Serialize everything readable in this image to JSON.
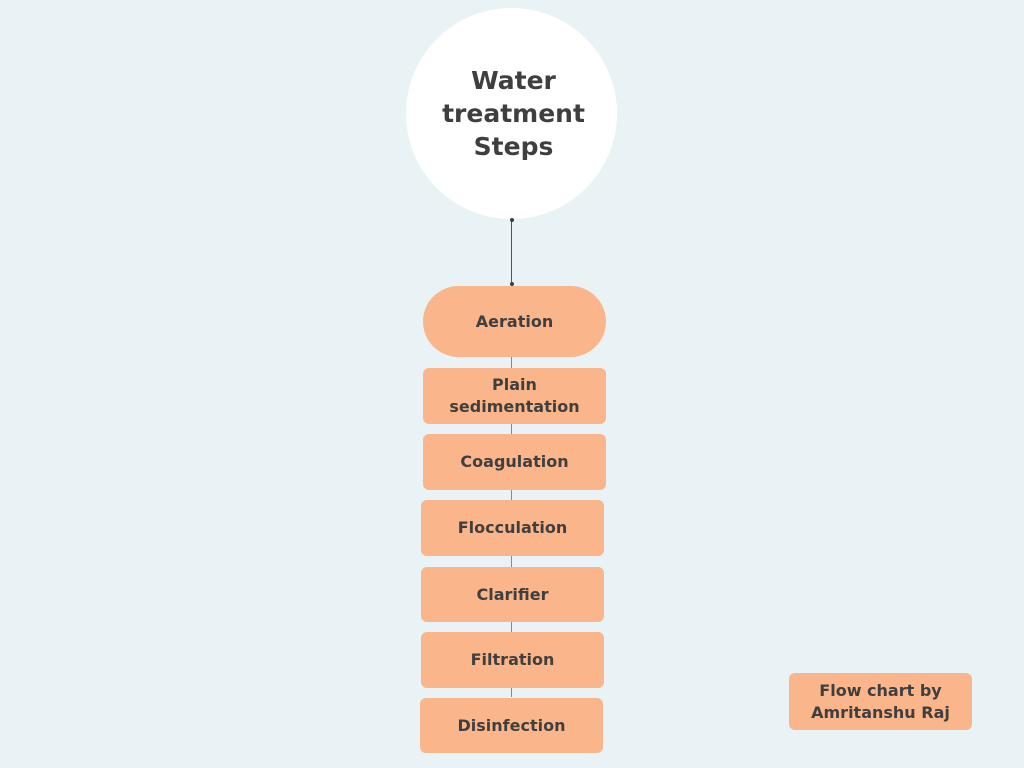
{
  "title": "Water\ntreatment\nSteps",
  "steps": [
    "Aeration",
    "Plain\nsedimentation",
    "Coagulation",
    "Flocculation",
    "Clarifier",
    "Filtration",
    "Disinfection"
  ],
  "credit": "Flow chart by\nAmritanshu Raj",
  "colors": {
    "background": "#e9f3f5",
    "step_fill": "#fab58a",
    "text": "#3f3f3f",
    "title_circle": "#ffffff"
  }
}
